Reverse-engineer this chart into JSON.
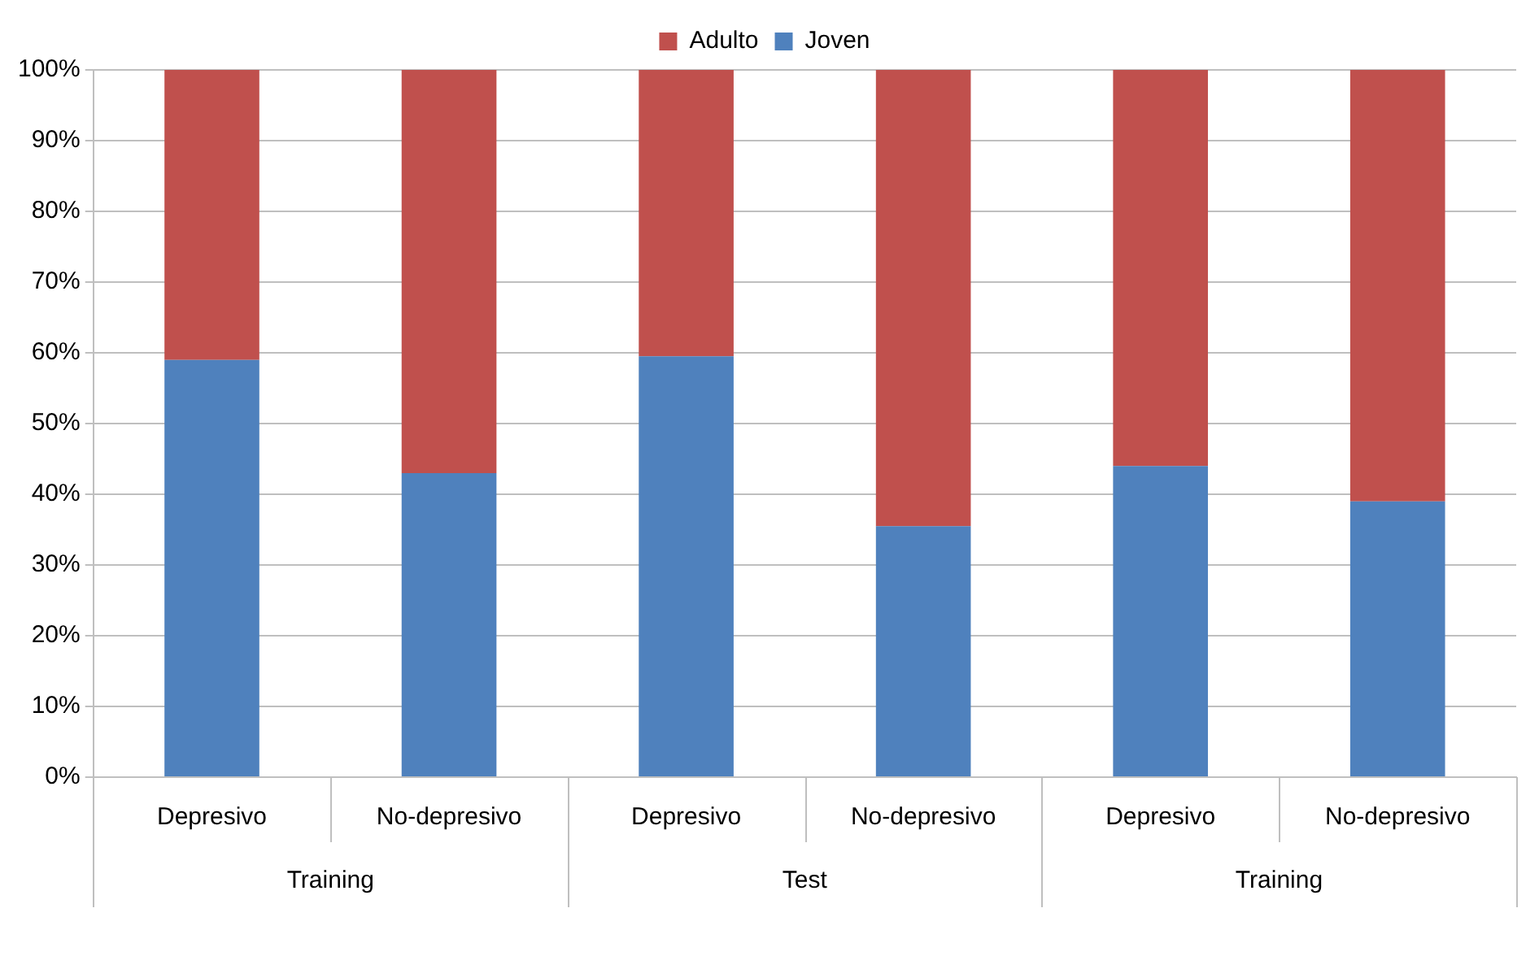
{
  "chart_data": {
    "type": "bar",
    "stacked": true,
    "categories": [
      "Depresivo",
      "No-depresivo",
      "Depresivo",
      "No-depresivo",
      "Depresivo",
      "No-depresivo"
    ],
    "series": [
      {
        "name": "Joven",
        "color": "#4f81bd",
        "values": [
          59,
          43,
          59.5,
          35.5,
          44,
          39
        ]
      },
      {
        "name": "Adulto",
        "color": "#c0504d",
        "values": [
          41,
          57,
          40.5,
          64.5,
          56,
          61
        ]
      }
    ],
    "ylim": [
      0,
      100
    ],
    "yticks": [
      {
        "value": 0,
        "label": "0%"
      },
      {
        "value": 10,
        "label": "10%"
      },
      {
        "value": 20,
        "label": "20%"
      },
      {
        "value": 30,
        "label": "30%"
      },
      {
        "value": 40,
        "label": "40%"
      },
      {
        "value": 50,
        "label": "50%"
      },
      {
        "value": 60,
        "label": "60%"
      },
      {
        "value": 70,
        "label": "70%"
      },
      {
        "value": 80,
        "label": "80%"
      },
      {
        "value": 90,
        "label": "90%"
      },
      {
        "value": 100,
        "label": "100%"
      }
    ],
    "grid": "y",
    "legend": "top",
    "annotations": [
      "Training",
      "Test",
      "Training"
    ]
  }
}
